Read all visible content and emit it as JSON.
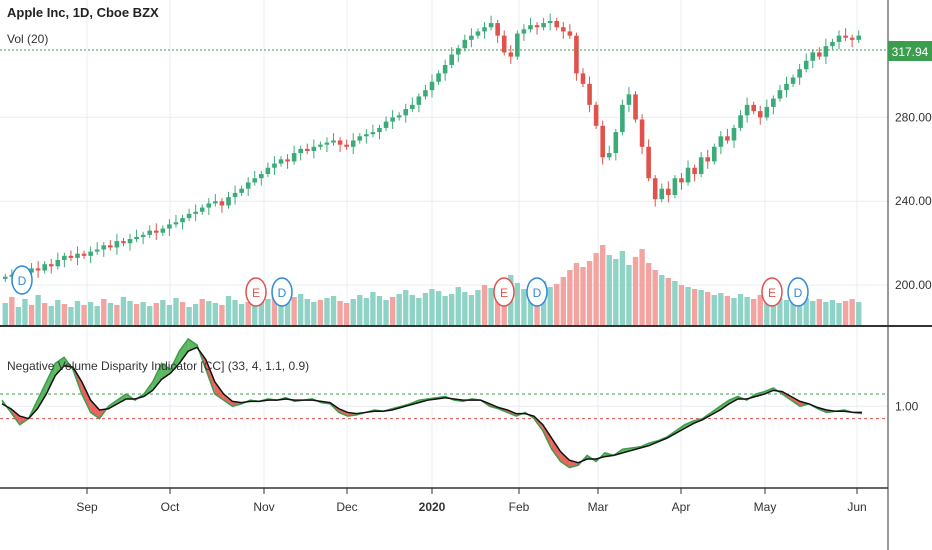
{
  "header": {
    "symbol_title": "Apple Inc, 1D, Cboe BZX",
    "vol_label": "Vol (20)",
    "indicator_title": "Negative Volume Disparity Indicator [CC] (33, 4, 1.1, 0.9)"
  },
  "colors": {
    "up": "#3cab79",
    "down": "#e0524c",
    "vol_up": "#8fd3c6",
    "vol_down": "#f3a3a0",
    "price_line": "#3d9d4f",
    "ma_line": "#111111",
    "upper_band": "#3d9d4f",
    "lower_band": "#e0524c",
    "grid": "#e9eef3",
    "earnings": "#e0524c",
    "dividends": "#2f8ad8"
  },
  "chart_data": [
    {
      "type": "candlestick",
      "title": "Apple Inc, 1D, Cboe BZX",
      "x_labels": [
        "Sep",
        "Oct",
        "Nov",
        "Dec",
        "2020",
        "Feb",
        "Mar",
        "Apr",
        "May",
        "Jun"
      ],
      "y_ticks": [
        "200.00",
        "240.00",
        "280.00"
      ],
      "ylim": [
        180,
        335
      ],
      "last_price": "317.94",
      "events": [
        {
          "type": "E",
          "month_pos": "late Oct"
        },
        {
          "type": "D",
          "month_pos": "early Nov"
        },
        {
          "type": "E",
          "month_pos": "late Jan"
        },
        {
          "type": "D",
          "month_pos": "early Feb"
        },
        {
          "type": "E",
          "month_pos": "early May"
        },
        {
          "type": "D",
          "month_pos": "early May"
        }
      ],
      "events_left_label": "D",
      "close_series": [
        203,
        204,
        202,
        205,
        207,
        206,
        209,
        208,
        211,
        213,
        212,
        214,
        213,
        215,
        216,
        218,
        217,
        220,
        219,
        221,
        222,
        223,
        225,
        224,
        226,
        228,
        229,
        231,
        233,
        234,
        236,
        238,
        239,
        237,
        241,
        243,
        245,
        248,
        250,
        252,
        255,
        257,
        259,
        258,
        262,
        264,
        263,
        265,
        266,
        267,
        268,
        266,
        265,
        268,
        270,
        271,
        272,
        274,
        277,
        279,
        280,
        283,
        285,
        289,
        292,
        296,
        300,
        304,
        309,
        312,
        316,
        318,
        320,
        322,
        324,
        318,
        310,
        308,
        319,
        321,
        323,
        322,
        324,
        325,
        322,
        320,
        318,
        300,
        295,
        285,
        275,
        260,
        262,
        272,
        285,
        290,
        278,
        265,
        250,
        240,
        245,
        242,
        250,
        248,
        255,
        252,
        260,
        258,
        265,
        270,
        268,
        274,
        280,
        285,
        282,
        279,
        284,
        288,
        292,
        295,
        298,
        302,
        306,
        310,
        308,
        313,
        315,
        318,
        317,
        316,
        318
      ]
    },
    {
      "type": "bar",
      "title": "Vol (20)",
      "values": [
        22,
        28,
        18,
        26,
        20,
        30,
        22,
        19,
        25,
        21,
        18,
        24,
        20,
        23,
        19,
        26,
        22,
        20,
        28,
        24,
        21,
        23,
        19,
        22,
        25,
        20,
        27,
        23,
        18,
        21,
        26,
        24,
        22,
        20,
        29,
        25,
        21,
        23,
        27,
        24,
        26,
        30,
        22,
        24,
        28,
        31,
        26,
        23,
        25,
        27,
        29,
        24,
        22,
        26,
        30,
        27,
        33,
        29,
        25,
        28,
        31,
        35,
        30,
        27,
        32,
        36,
        34,
        29,
        31,
        38,
        33,
        30,
        35,
        40,
        37,
        32,
        45,
        50,
        42,
        36,
        34,
        39,
        44,
        38,
        41,
        48,
        55,
        62,
        58,
        64,
        72,
        80,
        70,
        66,
        74,
        60,
        68,
        76,
        62,
        55,
        50,
        47,
        44,
        40,
        38,
        36,
        35,
        33,
        30,
        32,
        29,
        27,
        31,
        28,
        26,
        30,
        33,
        29,
        27,
        25,
        28,
        31,
        27,
        24,
        26,
        23,
        25,
        22,
        24,
        26,
        23
      ],
      "up_flags": [
        1,
        0,
        1,
        1,
        0,
        1,
        0,
        1,
        1,
        0,
        1,
        1,
        0,
        1,
        1,
        0,
        1,
        0,
        1,
        1,
        0,
        1,
        1,
        0,
        1,
        1,
        1,
        0,
        1,
        1,
        0,
        1,
        1,
        0,
        1,
        1,
        1,
        0,
        1,
        1,
        1,
        0,
        1,
        1,
        0,
        1,
        1,
        1,
        0,
        1,
        1,
        0,
        0,
        1,
        1,
        1,
        1,
        1,
        1,
        0,
        1,
        1,
        1,
        1,
        1,
        1,
        1,
        1,
        1,
        1,
        1,
        1,
        1,
        0,
        1,
        0,
        0,
        1,
        1,
        1,
        1,
        0,
        1,
        1,
        0,
        0,
        0,
        0,
        0,
        0,
        0,
        0,
        1,
        1,
        1,
        1,
        0,
        0,
        0,
        0,
        1,
        0,
        1,
        0,
        1,
        0,
        1,
        0,
        1,
        1,
        0,
        1,
        1,
        1,
        0,
        0,
        1,
        1,
        1,
        1,
        1,
        1,
        1,
        1,
        0,
        1,
        1,
        1,
        0,
        0,
        1
      ]
    },
    {
      "type": "line",
      "title": "Negative Volume Disparity Indicator [CC] (33, 4, 1.1, 0.9)",
      "y_ticks": [
        "1.00"
      ],
      "upper_band": 1.1,
      "lower_band": 0.9,
      "ylim": [
        0.35,
        1.5
      ],
      "series": [
        {
          "name": "",
          "values": [
            1.05,
            0.95,
            0.85,
            0.9,
            1.05,
            1.2,
            1.35,
            1.4,
            1.3,
            1.1,
            0.95,
            0.9,
            1.0,
            1.05,
            1.1,
            1.05,
            1.1,
            1.2,
            1.35,
            1.3,
            1.45,
            1.55,
            1.5,
            1.3,
            1.1,
            1.05,
            1.0,
            1.02,
            1.05,
            1.04,
            1.06,
            1.05,
            1.07,
            1.04,
            1.05,
            1.06,
            1.03,
            1.02,
            0.95,
            0.92,
            0.93,
            0.95,
            0.97,
            0.96,
            0.98,
            1.0,
            1.02,
            1.05,
            1.06,
            1.07,
            1.08,
            1.05,
            1.04,
            1.06,
            1.05,
            1.0,
            0.98,
            0.95,
            0.92,
            0.95,
            0.9,
            0.8,
            0.65,
            0.55,
            0.5,
            0.52,
            0.6,
            0.55,
            0.62,
            0.6,
            0.65,
            0.66,
            0.67,
            0.7,
            0.72,
            0.75,
            0.8,
            0.85,
            0.88,
            0.9,
            0.95,
            1.0,
            1.05,
            1.08,
            1.05,
            1.1,
            1.12,
            1.15,
            1.1,
            1.05,
            1.0,
            1.02,
            0.98,
            0.95,
            0.96,
            0.97,
            0.95,
            0.94
          ]
        },
        {
          "name": "",
          "values": [
            1.02,
            0.98,
            0.92,
            0.9,
            0.98,
            1.1,
            1.25,
            1.33,
            1.32,
            1.2,
            1.05,
            0.97,
            0.98,
            1.02,
            1.06,
            1.06,
            1.08,
            1.13,
            1.22,
            1.27,
            1.35,
            1.45,
            1.48,
            1.38,
            1.2,
            1.1,
            1.04,
            1.03,
            1.04,
            1.04,
            1.05,
            1.05,
            1.06,
            1.05,
            1.05,
            1.05,
            1.04,
            1.03,
            0.98,
            0.95,
            0.94,
            0.95,
            0.96,
            0.96,
            0.97,
            0.99,
            1.01,
            1.03,
            1.05,
            1.06,
            1.07,
            1.06,
            1.05,
            1.05,
            1.05,
            1.02,
            0.99,
            0.97,
            0.94,
            0.94,
            0.92,
            0.85,
            0.74,
            0.63,
            0.56,
            0.54,
            0.57,
            0.57,
            0.59,
            0.6,
            0.62,
            0.64,
            0.66,
            0.68,
            0.71,
            0.74,
            0.78,
            0.82,
            0.86,
            0.89,
            0.93,
            0.97,
            1.02,
            1.06,
            1.06,
            1.08,
            1.1,
            1.13,
            1.12,
            1.08,
            1.04,
            1.02,
            0.99,
            0.97,
            0.96,
            0.96,
            0.95,
            0.95
          ]
        }
      ]
    }
  ]
}
